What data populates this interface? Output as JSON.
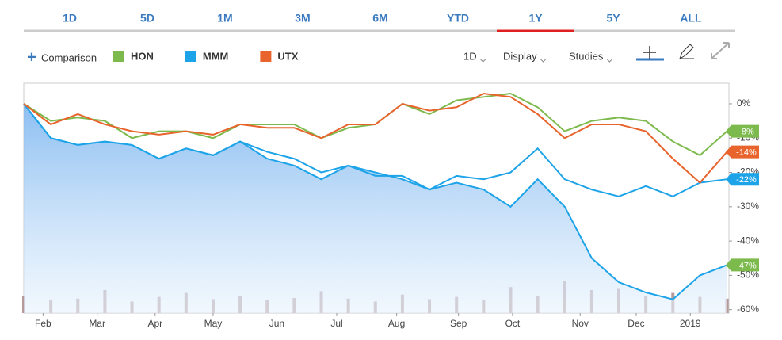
{
  "toolbar": {
    "periods": [
      "1D",
      "5D",
      "1M",
      "3M",
      "6M",
      "YTD",
      "1Y",
      "5Y",
      "ALL"
    ],
    "active_period": 6,
    "comparison": "Comparison",
    "menus": [
      "1D",
      "Display",
      "Studies"
    ]
  },
  "chart_data": {
    "type": "line",
    "x": [
      0,
      14,
      28,
      42,
      56,
      70,
      84,
      98,
      112,
      126,
      140,
      154,
      168,
      182,
      196,
      210,
      224,
      238,
      252,
      266,
      280,
      294,
      308,
      322,
      336,
      350,
      364
    ],
    "xlim": [
      0,
      365
    ],
    "xticks": [
      {
        "value": 10,
        "label": "Feb"
      },
      {
        "value": 38,
        "label": "Mar"
      },
      {
        "value": 68,
        "label": "Apr"
      },
      {
        "value": 98,
        "label": "May"
      },
      {
        "value": 131,
        "label": "Jun"
      },
      {
        "value": 162,
        "label": "Jul"
      },
      {
        "value": 193,
        "label": "Aug"
      },
      {
        "value": 225,
        "label": "Sep"
      },
      {
        "value": 253,
        "label": "Oct"
      },
      {
        "value": 288,
        "label": "Nov"
      },
      {
        "value": 317,
        "label": "Dec"
      },
      {
        "value": 345,
        "label": "2019"
      }
    ],
    "ylim": [
      -61,
      6
    ],
    "yticks": [
      {
        "value": 0,
        "label": "0%"
      },
      {
        "value": -10,
        "label": "-10%"
      },
      {
        "value": -20,
        "label": "-20%"
      },
      {
        "value": -30,
        "label": "-30%"
      },
      {
        "value": -40,
        "label": "-40%"
      },
      {
        "value": -50,
        "label": "-50%"
      },
      {
        "value": -60,
        "label": "-60%"
      }
    ],
    "area": {
      "color": "#1ca3e8",
      "values": [
        0,
        -10,
        -12,
        -11,
        -12,
        -16,
        -13,
        -15,
        -11,
        -16,
        -18,
        -22,
        -18,
        -20,
        -22,
        -25,
        -23,
        -25,
        -30,
        -22,
        -30,
        -45,
        -52,
        -55,
        -57,
        -50,
        -47
      ],
      "value_label": "-47%",
      "label_color": "#7dba4d"
    },
    "series": [
      {
        "name": "HON",
        "color": "#7dba4d",
        "values": [
          0,
          -5,
          -4,
          -5,
          -10,
          -8,
          -8,
          -10,
          -6,
          -6,
          -6,
          -10,
          -7,
          -6,
          0,
          -3,
          1,
          2,
          3,
          -1,
          -8,
          -5,
          -4,
          -5,
          -11,
          -15,
          -8
        ],
        "value_label": "-8%"
      },
      {
        "name": "MMM",
        "color": "#1ca3e8",
        "values": [
          0,
          -10,
          -12,
          -11,
          -12,
          -16,
          -13,
          -15,
          -11,
          -14,
          -16,
          -20,
          -18,
          -21,
          -21,
          -25,
          -21,
          -22,
          -20,
          -13,
          -22,
          -25,
          -27,
          -24,
          -27,
          -23,
          -22
        ],
        "value_label": "-22%"
      },
      {
        "name": "UTX",
        "color": "#e8642c",
        "values": [
          0,
          -6,
          -3,
          -6,
          -8,
          -9,
          -8,
          -9,
          -6,
          -7,
          -7,
          -10,
          -6,
          -6,
          0,
          -2,
          -1,
          3,
          2,
          -3,
          -10,
          -6,
          -6,
          -8,
          -16,
          -23,
          -14
        ],
        "value_label": "-14%"
      }
    ],
    "volume": [
      30,
      22,
      25,
      40,
      20,
      28,
      35,
      24,
      30,
      22,
      26,
      38,
      25,
      20,
      32,
      24,
      28,
      22,
      45,
      30,
      55,
      40,
      42,
      30,
      35,
      28,
      25
    ],
    "volume_color": "#b79a9a",
    "grid": false
  }
}
